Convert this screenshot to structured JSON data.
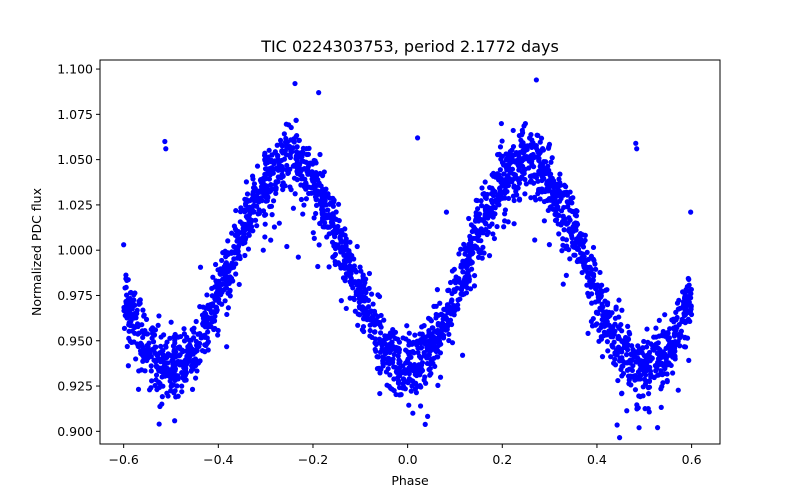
{
  "chart_data": {
    "type": "scatter",
    "title": "TIC 0224303753, period 2.1772 days",
    "xlabel": "Phase",
    "ylabel": "Normalized PDC flux",
    "xlim": [
      -0.65,
      0.66
    ],
    "ylim": [
      0.893,
      1.105
    ],
    "xticks": [
      -0.6,
      -0.4,
      -0.2,
      0.0,
      0.2,
      0.4,
      0.6
    ],
    "xtick_labels": [
      "−0.6",
      "−0.4",
      "−0.2",
      "0.0",
      "0.2",
      "0.4",
      "0.6"
    ],
    "yticks": [
      0.9,
      0.925,
      0.95,
      0.975,
      1.0,
      1.025,
      1.05,
      1.075,
      1.1
    ],
    "ytick_labels": [
      "0.900",
      "0.925",
      "0.950",
      "0.975",
      "1.000",
      "1.025",
      "1.050",
      "1.075",
      "1.100"
    ],
    "grid": false,
    "marker_color": "#0000ff",
    "phase_range": [
      -0.6,
      0.6
    ],
    "period_days": 2.1772,
    "model": {
      "description": "double-humped sinusoid",
      "mean": 0.9925,
      "amplitude": 0.057,
      "cycles_per_unit_phase": 2,
      "peak_phase": 0.25,
      "scatter_sigma": 0.009
    },
    "outliers": [
      {
        "x": -0.513,
        "y": 1.06
      },
      {
        "x": -0.511,
        "y": 1.056
      },
      {
        "x": 0.021,
        "y": 1.062
      },
      {
        "x": 0.482,
        "y": 1.059
      },
      {
        "x": 0.484,
        "y": 1.056
      },
      {
        "x": -0.188,
        "y": 1.087
      },
      {
        "x": -0.238,
        "y": 1.092
      },
      {
        "x": 0.272,
        "y": 1.094
      },
      {
        "x": 0.598,
        "y": 1.021
      },
      {
        "x": -0.6,
        "y": 1.003
      },
      {
        "x": -0.525,
        "y": 0.904
      },
      {
        "x": 0.011,
        "y": 0.91
      },
      {
        "x": 0.489,
        "y": 0.902
      },
      {
        "x": -0.305,
        "y": 1.0
      },
      {
        "x": 0.082,
        "y": 1.021
      },
      {
        "x": 0.173,
        "y": 0.997
      }
    ]
  }
}
